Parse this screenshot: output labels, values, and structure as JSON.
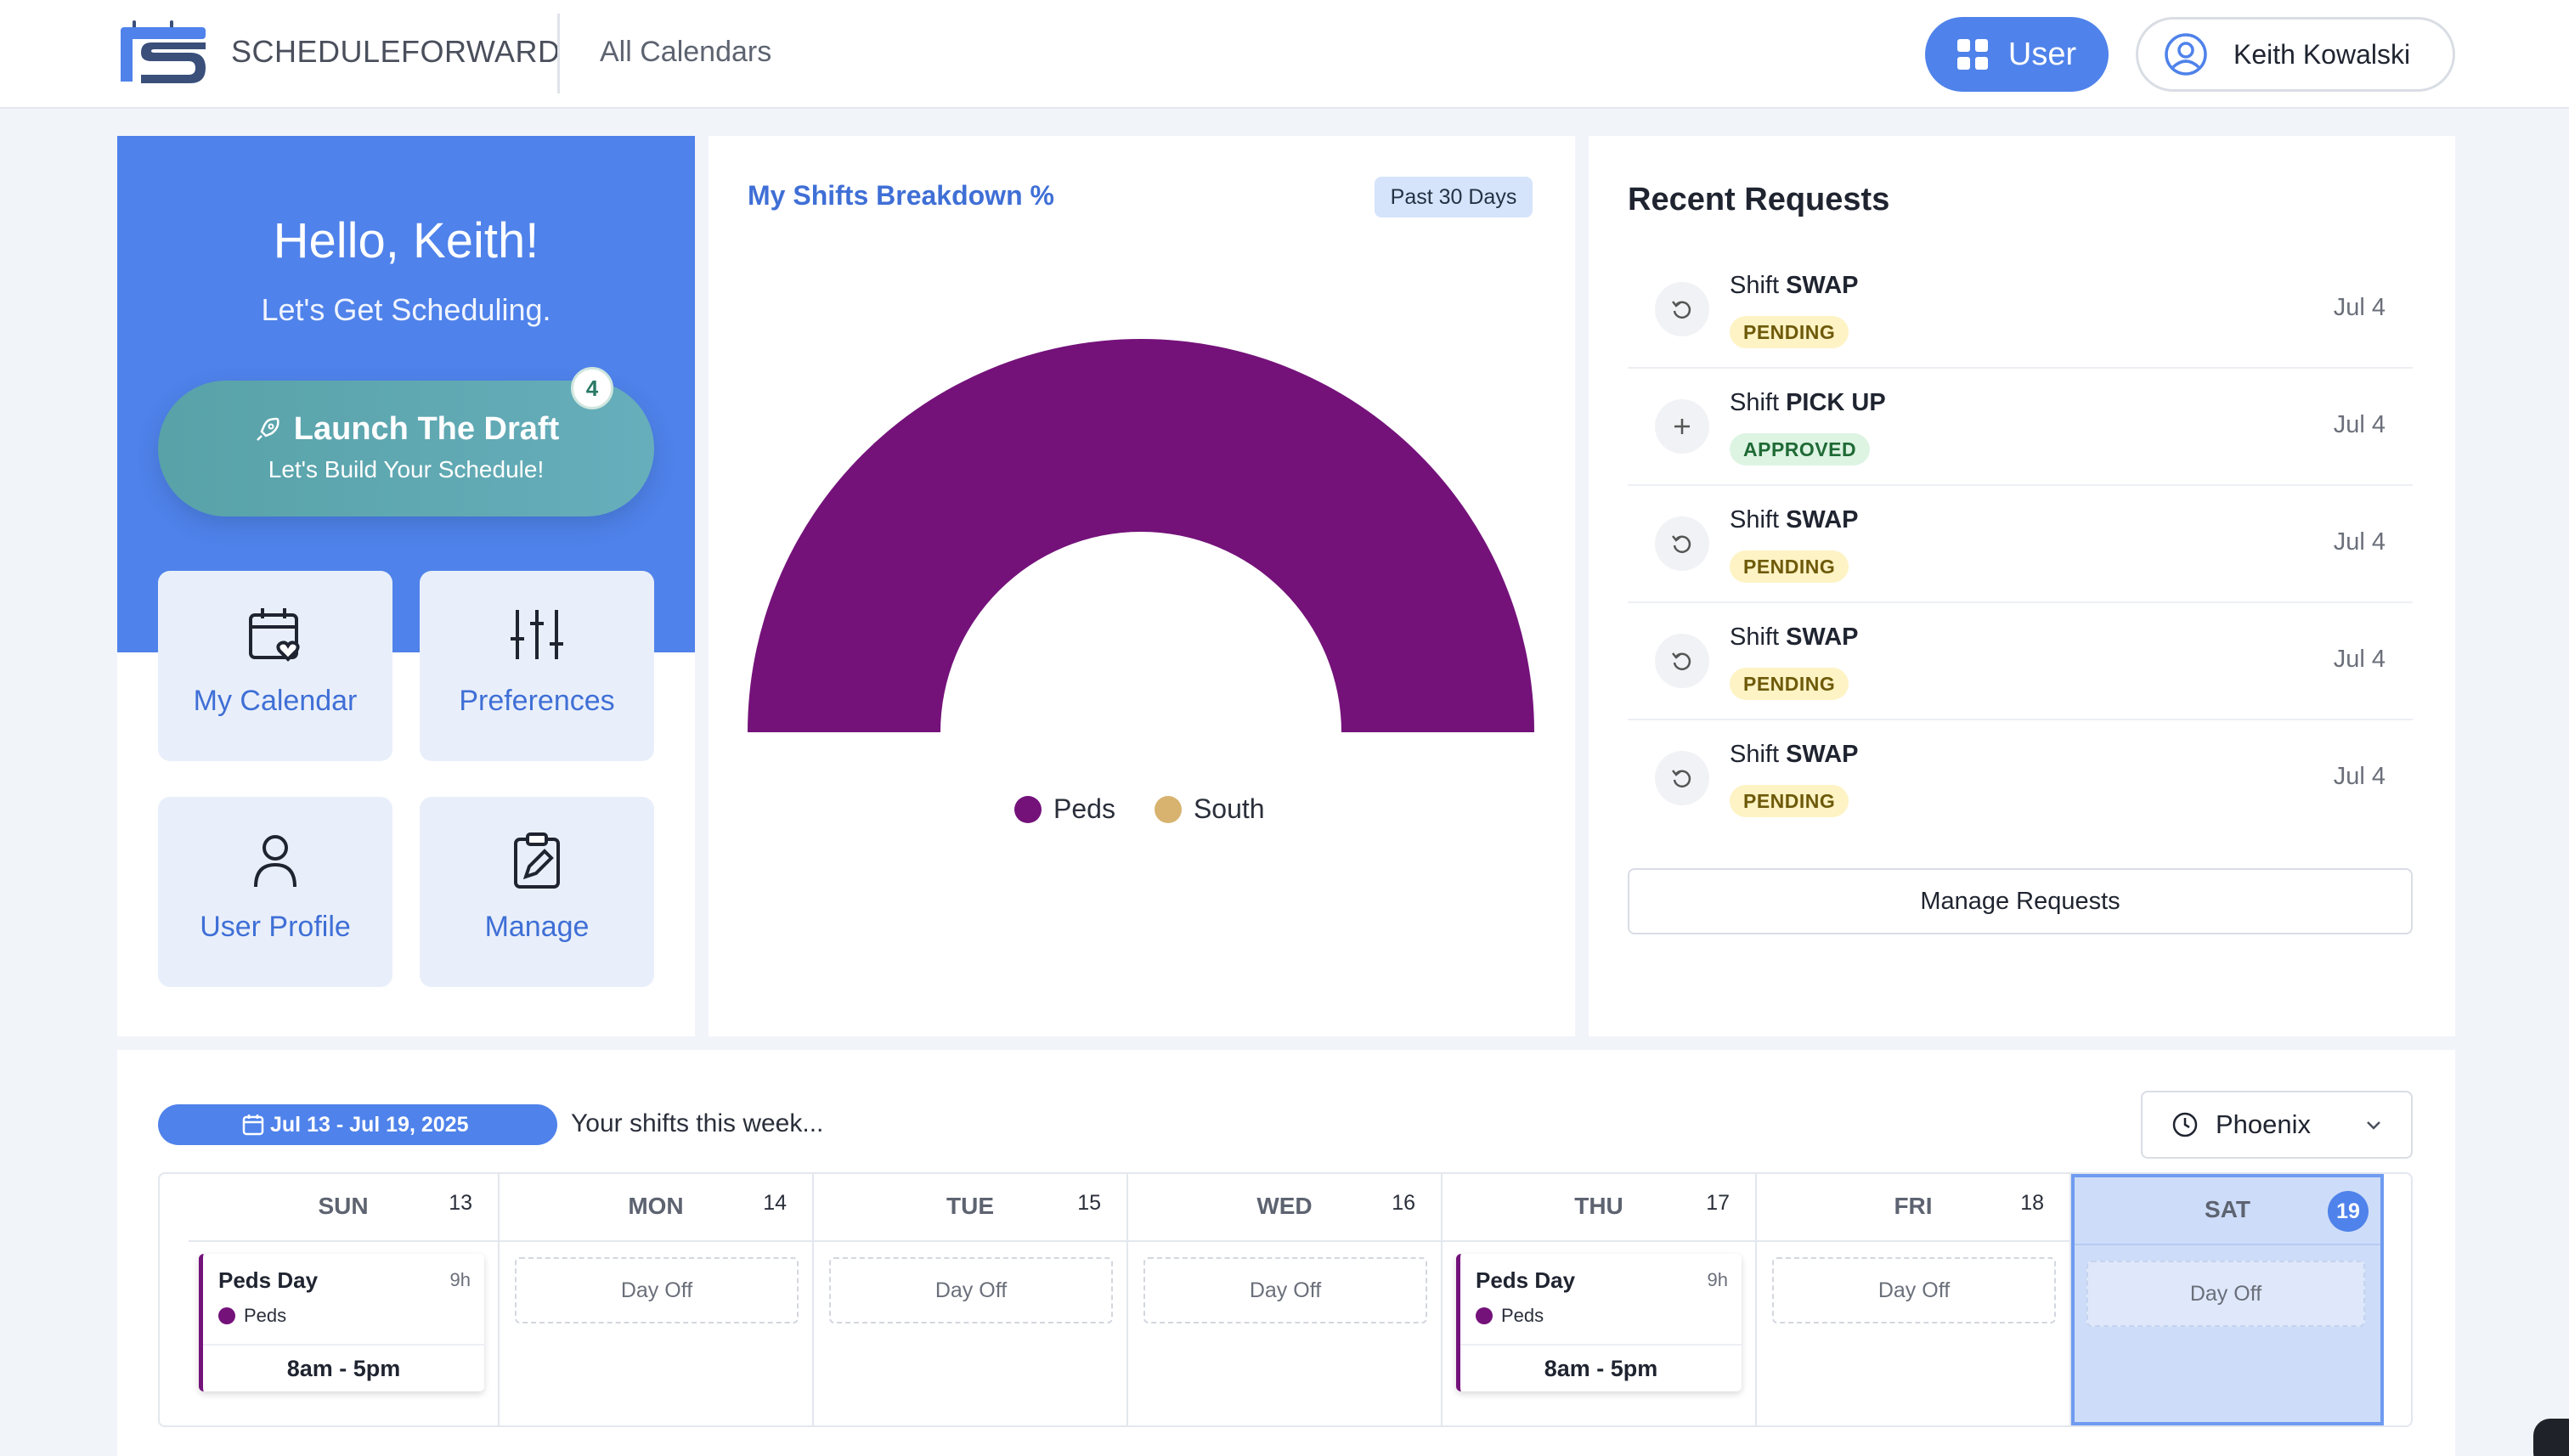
{
  "header": {
    "brand": "SCHEDULEFORWARD",
    "nav_link": "All Calendars",
    "user_button": "User",
    "account_name": "Keith Kowalski"
  },
  "welcome": {
    "greeting": "Hello, Keith!",
    "subtitle": "Let's Get Scheduling.",
    "launch_title": "Launch The Draft",
    "launch_subtitle": "Let's Build Your Schedule!",
    "launch_badge": "4",
    "tiles": [
      {
        "label": "My Calendar",
        "icon": "calendar-heart-icon"
      },
      {
        "label": "Preferences",
        "icon": "sliders-icon"
      },
      {
        "label": "User Profile",
        "icon": "user-icon"
      },
      {
        "label": "Manage",
        "icon": "clipboard-edit-icon"
      }
    ]
  },
  "breakdown": {
    "title": "My Shifts Breakdown %",
    "period": "Past 30 Days",
    "chart_data": {
      "type": "pie",
      "style": "half-donut",
      "categories": [
        "Peds",
        "South"
      ],
      "values": [
        100,
        0
      ],
      "colors": [
        "#74127a",
        "#d8b36f"
      ],
      "legend_position": "bottom"
    }
  },
  "requests": {
    "title": "Recent Requests",
    "items": [
      {
        "prefix": "Shift",
        "type": "SWAP",
        "status": "PENDING",
        "date": "Jul 4",
        "icon": "undo-icon"
      },
      {
        "prefix": "Shift",
        "type": "PICK UP",
        "status": "APPROVED",
        "date": "Jul 4",
        "icon": "plus-icon"
      },
      {
        "prefix": "Shift",
        "type": "SWAP",
        "status": "PENDING",
        "date": "Jul 4",
        "icon": "undo-icon"
      },
      {
        "prefix": "Shift",
        "type": "SWAP",
        "status": "PENDING",
        "date": "Jul 4",
        "icon": "undo-icon"
      },
      {
        "prefix": "Shift",
        "type": "SWAP",
        "status": "PENDING",
        "date": "Jul 4",
        "icon": "undo-icon"
      }
    ],
    "manage_button": "Manage Requests"
  },
  "week": {
    "range": "Jul 13 - Jul 19, 2025",
    "caption": "Your shifts this week...",
    "timezone": "Phoenix",
    "days": [
      {
        "name": "SUN",
        "num": "13",
        "shift": {
          "title": "Peds Day",
          "hours": "9h",
          "location": "Peds",
          "time": "8am - 5pm"
        }
      },
      {
        "name": "MON",
        "num": "14",
        "off": "Day Off"
      },
      {
        "name": "TUE",
        "num": "15",
        "off": "Day Off"
      },
      {
        "name": "WED",
        "num": "16",
        "off": "Day Off"
      },
      {
        "name": "THU",
        "num": "17",
        "shift": {
          "title": "Peds Day",
          "hours": "9h",
          "location": "Peds",
          "time": "8am - 5pm"
        }
      },
      {
        "name": "FRI",
        "num": "18",
        "off": "Day Off"
      },
      {
        "name": "SAT",
        "num": "19",
        "off": "Day Off",
        "today": true
      }
    ]
  },
  "colors": {
    "accent": "#4f82ea",
    "peds": "#74127a",
    "south": "#d8b36f"
  }
}
